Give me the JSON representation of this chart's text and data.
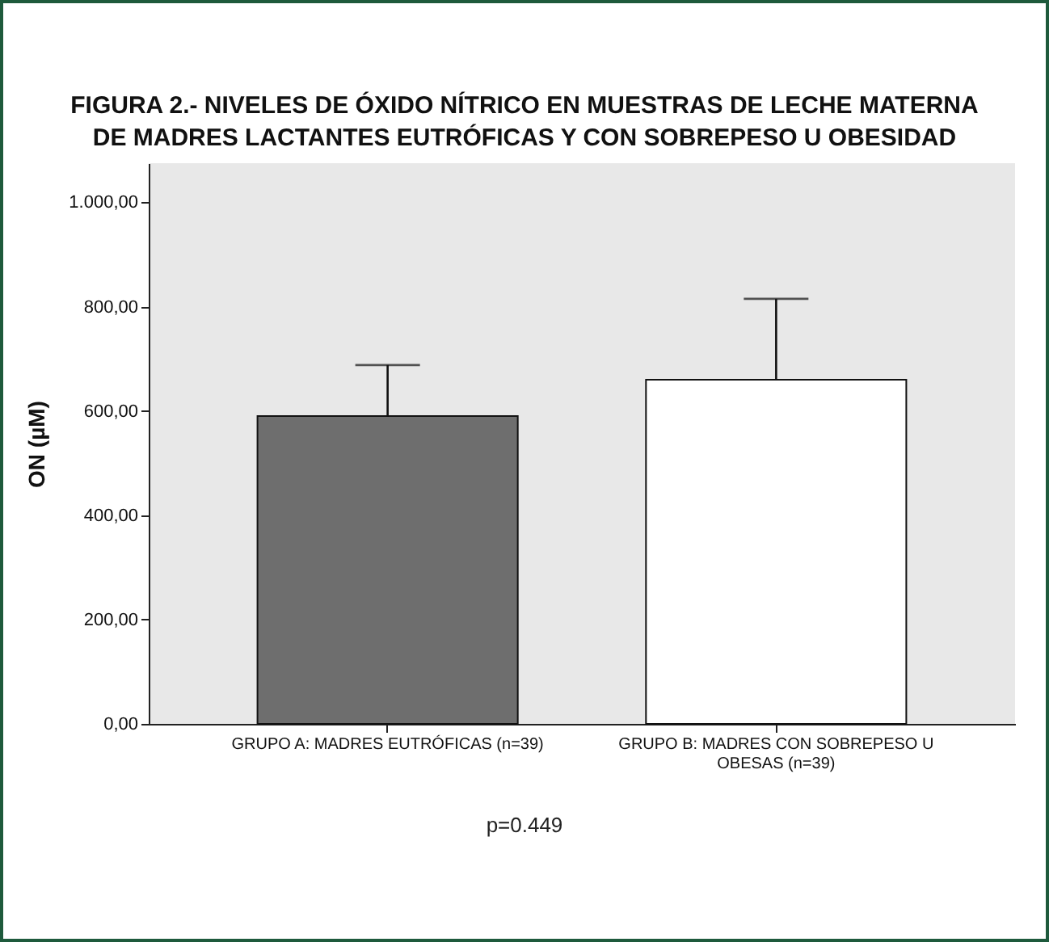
{
  "chart_data": {
    "type": "bar",
    "title": "FIGURA 2.- NIVELES DE ÓXIDO NÍTRICO EN MUESTRAS DE LECHE MATERNA\nDE MADRES LACTANTES EUTRÓFICAS Y CON SOBREPESO U OBESIDAD",
    "ylabel": "ON (µM)",
    "categories": [
      "GRUPO A: MADRES EUTRÓFICAS (n=39)",
      "GRUPO B: MADRES CON SOBREPESO U OBESAS (n=39)"
    ],
    "values": [
      590,
      660
    ],
    "colors": [
      "#6e6e6e",
      "#ffffff"
    ],
    "errors": [
      [
        590,
        688
      ],
      [
        660,
        815
      ]
    ],
    "ylim": [
      0,
      1075
    ],
    "yticks": [
      {
        "value": 0,
        "label": "0,00"
      },
      {
        "value": 200,
        "label": "200,00"
      },
      {
        "value": 400,
        "label": "400,00"
      },
      {
        "value": 600,
        "label": "600,00"
      },
      {
        "value": 800,
        "label": "800,00"
      },
      {
        "value": 1000,
        "label": "1.000,00"
      }
    ],
    "grid": false,
    "annotations": [
      "p=0.449"
    ]
  }
}
